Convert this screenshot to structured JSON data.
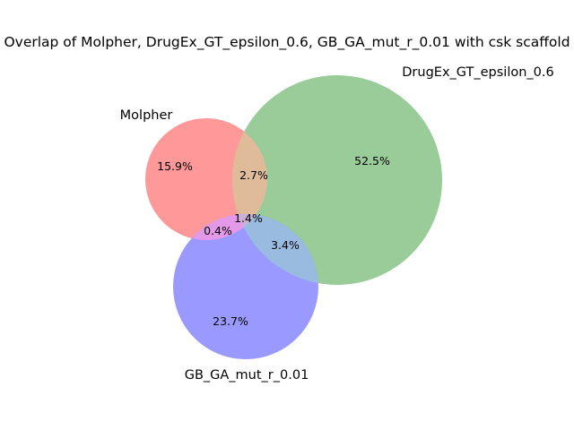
{
  "title": "Overlap of Molpher, DrugEx_GT_epsilon_0.6, GB_GA_mut_r_0.01 with csk scaffold",
  "chart_data": {
    "type": "venn3",
    "sets": [
      {
        "id": "A",
        "name": "Molpher",
        "color": "#ff0000"
      },
      {
        "id": "B",
        "name": "DrugEx_GT_epsilon_0.6",
        "color": "#00ff00"
      },
      {
        "id": "C",
        "name": "GB_GA_mut_r_0.01",
        "color": "#0000ff"
      }
    ],
    "regions": {
      "A_only": "15.9%",
      "B_only": "52.5%",
      "C_only": "23.7%",
      "AB": "2.7%",
      "AC": "0.4%",
      "BC": "3.4%",
      "ABC": "1.4%"
    }
  }
}
